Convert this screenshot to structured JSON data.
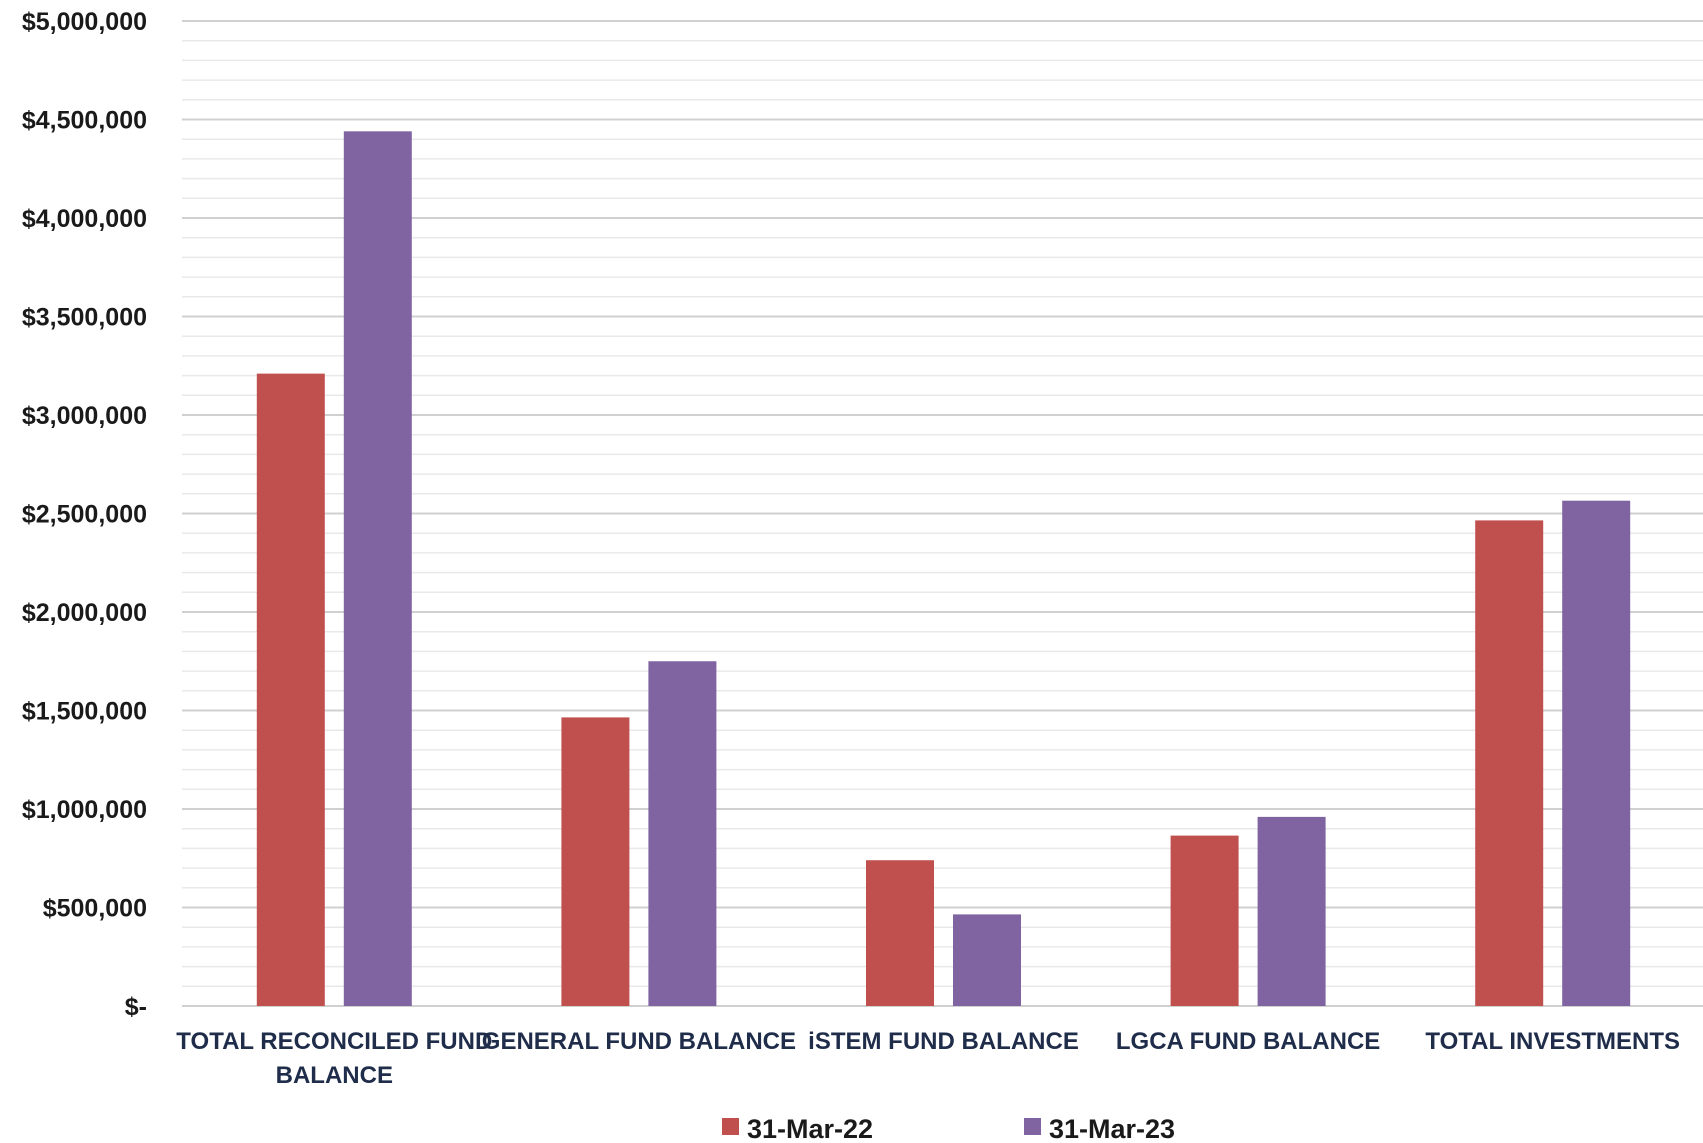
{
  "chart_data": {
    "type": "bar",
    "title": "",
    "xlabel": "",
    "ylabel": "",
    "categories": [
      [
        "TOTAL RECONCILED FUND",
        "BALANCE"
      ],
      [
        "GENERAL FUND BALANCE"
      ],
      [
        "iSTEM FUND BALANCE"
      ],
      [
        "LGCA FUND BALANCE"
      ],
      [
        "TOTAL INVESTMENTS"
      ]
    ],
    "series": [
      {
        "name": "31-Mar-22",
        "color": "#C0504D",
        "values": [
          3210000,
          1465000,
          740000,
          865000,
          2465000
        ]
      },
      {
        "name": "31-Mar-23",
        "color": "#8064A2",
        "values": [
          4440000,
          1750000,
          465000,
          960000,
          2565000
        ]
      }
    ],
    "ylim": [
      0,
      5000000
    ],
    "major_step": 500000,
    "minor_step": 100000,
    "ytick_labels": [
      "$-",
      "$500,000",
      "$1,000,000",
      "$1,500,000",
      "$2,000,000",
      "$2,500,000",
      "$3,000,000",
      "$3,500,000",
      "$4,000,000",
      "$4,500,000",
      "$5,000,000"
    ],
    "grid": true,
    "legend_position": "bottom"
  }
}
